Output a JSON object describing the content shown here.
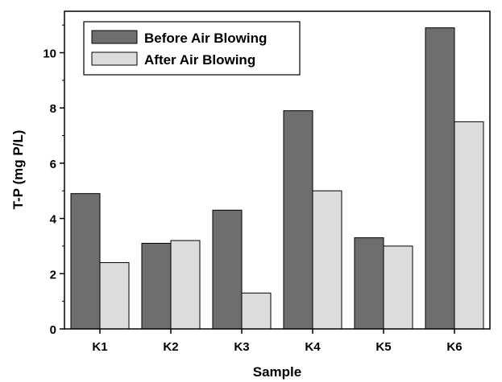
{
  "chart_data": {
    "type": "bar",
    "xlabel": "Sample",
    "ylabel": "T-P (mg P/L)",
    "categories": [
      "K1",
      "K2",
      "K3",
      "K4",
      "K5",
      "K6"
    ],
    "ylim": [
      0,
      11.5
    ],
    "yticks": [
      0,
      2,
      4,
      6,
      8,
      10
    ],
    "legend_position": "top-left",
    "grid": false,
    "series": [
      {
        "name": "Before Air Blowing",
        "color": "#6e6e6e",
        "values": [
          4.9,
          3.1,
          4.3,
          7.9,
          3.3,
          10.9
        ]
      },
      {
        "name": "After Air Blowing",
        "color": "#dcdcdc",
        "values": [
          2.4,
          3.2,
          1.3,
          5.0,
          3.0,
          7.5
        ]
      }
    ]
  }
}
